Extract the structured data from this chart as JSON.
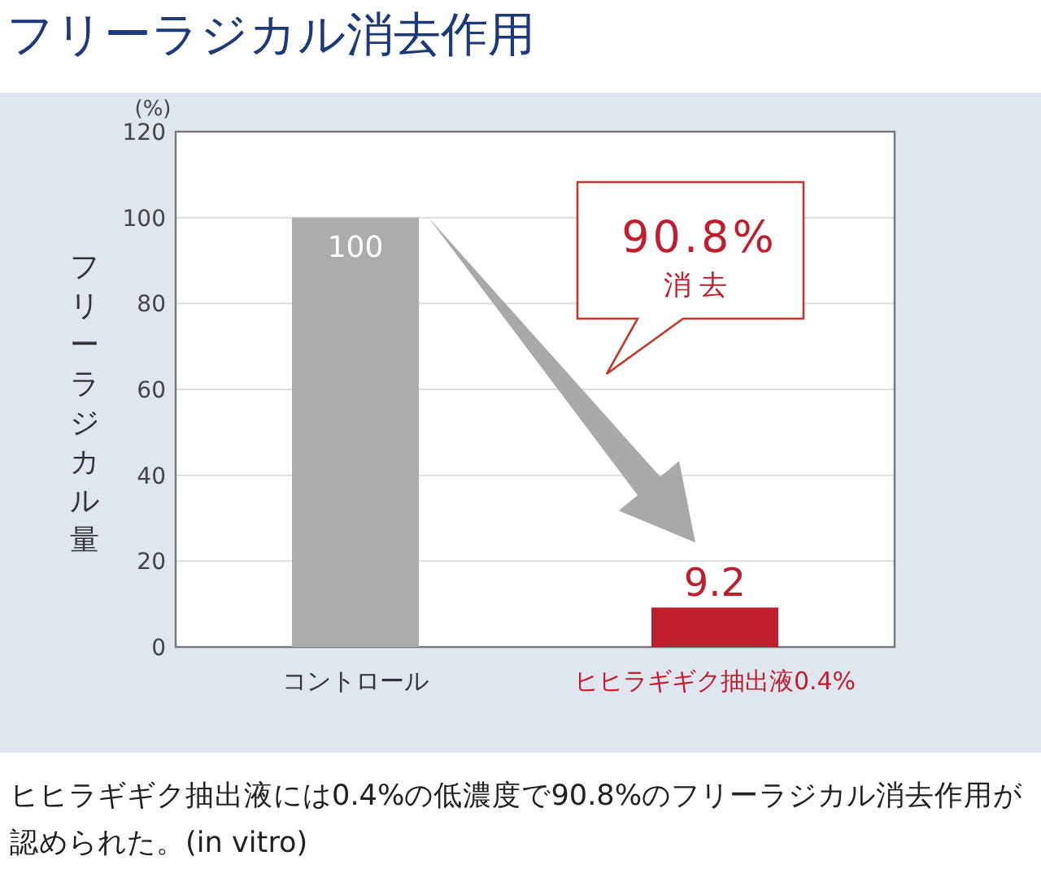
{
  "chart_data": {
    "type": "bar",
    "title": "フリーラジカル消去作用",
    "ylabel": "フリーラジカル量",
    "categories": [
      "コントロール",
      "ヒヒラギギク抽出液0.4%"
    ],
    "values": [
      100,
      9.2
    ],
    "colors": [
      "#acacac",
      "#be1e2d"
    ],
    "ylim": [
      0,
      120
    ],
    "yticks": [
      0,
      20,
      40,
      60,
      80,
      100,
      120
    ],
    "grid": "y",
    "data_labels": true,
    "annotations": [
      "(%)",
      "90.8%",
      "消去",
      "ヒヒラギギク抽出液には0.4%の低濃度で90.8%のフリーラジカル消去作用が認められた。(in vitro)"
    ]
  }
}
